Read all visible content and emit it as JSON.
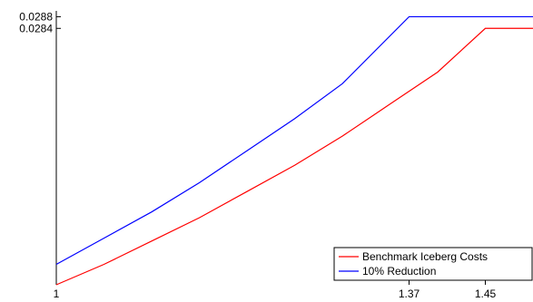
{
  "chart_data": {
    "type": "line",
    "title": "",
    "xlabel": "",
    "ylabel": "",
    "xlim": [
      1,
      1.5
    ],
    "ylim": [
      0.0196,
      0.029
    ],
    "grid": false,
    "legend_position": "bottom-right",
    "x_ticks": [
      {
        "value": 1,
        "label": "1"
      },
      {
        "value": 1.37,
        "label": "1.37"
      },
      {
        "value": 1.45,
        "label": "1.45"
      }
    ],
    "y_ticks": [
      {
        "value": 0.0288,
        "label": "0.0288"
      },
      {
        "value": 0.0284,
        "label": "0.0284"
      }
    ],
    "series": [
      {
        "name": "Benchmark Iceberg Costs",
        "color": "#ff0000",
        "points": [
          [
            1.0,
            0.0196
          ],
          [
            1.05,
            0.0203
          ],
          [
            1.1,
            0.0211
          ],
          [
            1.15,
            0.0219
          ],
          [
            1.2,
            0.0228
          ],
          [
            1.25,
            0.0237
          ],
          [
            1.3,
            0.0247
          ],
          [
            1.35,
            0.0258
          ],
          [
            1.4,
            0.0269
          ],
          [
            1.45,
            0.0284
          ],
          [
            1.5,
            0.0284
          ]
        ]
      },
      {
        "name": "10% Reduction",
        "color": "#0000ff",
        "points": [
          [
            1.0,
            0.0203
          ],
          [
            1.05,
            0.0212
          ],
          [
            1.1,
            0.0221
          ],
          [
            1.15,
            0.0231
          ],
          [
            1.2,
            0.0242
          ],
          [
            1.25,
            0.0253
          ],
          [
            1.3,
            0.0265
          ],
          [
            1.37,
            0.0288
          ],
          [
            1.5,
            0.0288
          ]
        ]
      }
    ]
  }
}
